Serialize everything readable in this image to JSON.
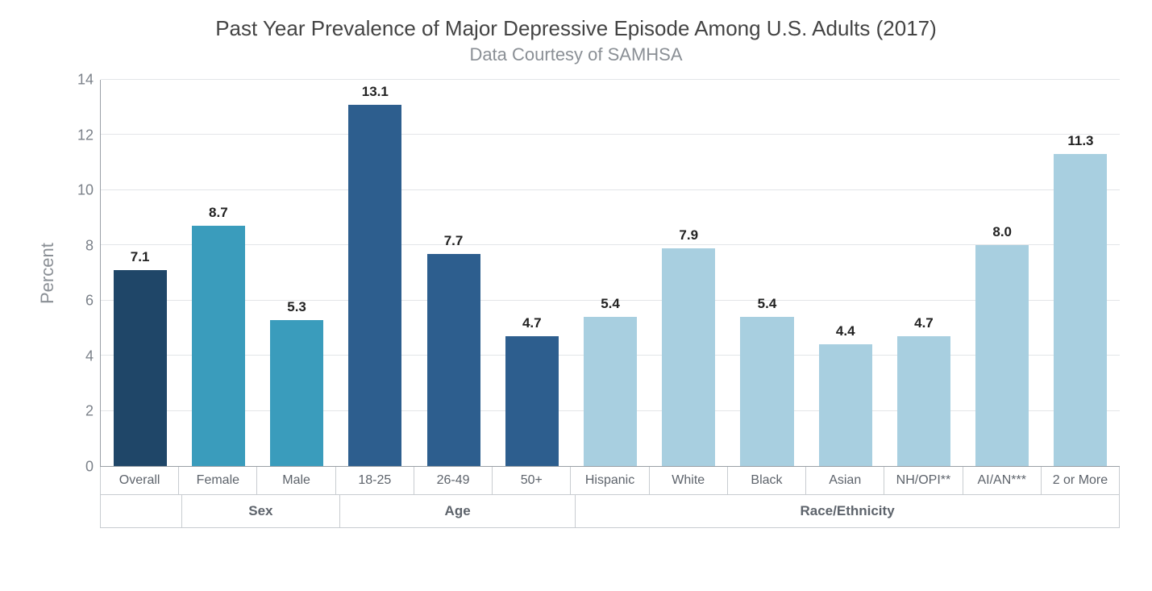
{
  "chart": {
    "type": "bar",
    "title": "Past Year Prevalence of Major Depressive Episode Among U.S. Adults (2017)",
    "subtitle": "Data Courtesy of SAMHSA",
    "ylabel": "Percent",
    "ylim": [
      0,
      14
    ],
    "ytick_step": 2,
    "yticks": [
      0,
      2,
      4,
      6,
      8,
      10,
      12,
      14
    ],
    "background_color": "#ffffff",
    "grid_color": "#e3e5e8",
    "axis_color": "#9aa0a6",
    "title_fontsize": 26,
    "subtitle_fontsize": 22,
    "label_fontsize": 22,
    "tick_fontsize": 18,
    "value_fontsize": 17,
    "bar_width_ratio": 0.68,
    "text_color_title": "#444444",
    "text_color_muted": "#8a8f95",
    "text_color_value": "#222222",
    "colors": {
      "overall": "#1f4668",
      "sex": "#3a9cbc",
      "age": "#2d5e8e",
      "race": "#a8cfe0"
    },
    "bars": [
      {
        "label": "Overall",
        "value": 7.1,
        "color": "#1f4668",
        "group": ""
      },
      {
        "label": "Female",
        "value": 8.7,
        "color": "#3a9cbc",
        "group": "Sex"
      },
      {
        "label": "Male",
        "value": 5.3,
        "color": "#3a9cbc",
        "group": "Sex"
      },
      {
        "label": "18-25",
        "value": 13.1,
        "color": "#2d5e8e",
        "group": "Age"
      },
      {
        "label": "26-49",
        "value": 7.7,
        "color": "#2d5e8e",
        "group": "Age"
      },
      {
        "label": "50+",
        "value": 4.7,
        "color": "#2d5e8e",
        "group": "Age"
      },
      {
        "label": "Hispanic",
        "value": 5.4,
        "color": "#a8cfe0",
        "group": "Race/Ethnicity"
      },
      {
        "label": "White",
        "value": 7.9,
        "color": "#a8cfe0",
        "group": "Race/Ethnicity"
      },
      {
        "label": "Black",
        "value": 5.4,
        "color": "#a8cfe0",
        "group": "Race/Ethnicity"
      },
      {
        "label": "Asian",
        "value": 4.4,
        "color": "#a8cfe0",
        "group": "Race/Ethnicity"
      },
      {
        "label": "NH/OPI**",
        "value": 4.7,
        "color": "#a8cfe0",
        "group": "Race/Ethnicity"
      },
      {
        "label": "AI/AN***",
        "value": 8.0,
        "color": "#a8cfe0",
        "group": "Race/Ethnicity"
      },
      {
        "label": "2 or More",
        "value": 11.3,
        "color": "#a8cfe0",
        "group": "Race/Ethnicity"
      }
    ],
    "groups": [
      {
        "name": "",
        "span": 1
      },
      {
        "name": "Sex",
        "span": 2
      },
      {
        "name": "Age",
        "span": 3
      },
      {
        "name": "Race/Ethnicity",
        "span": 7
      }
    ]
  }
}
